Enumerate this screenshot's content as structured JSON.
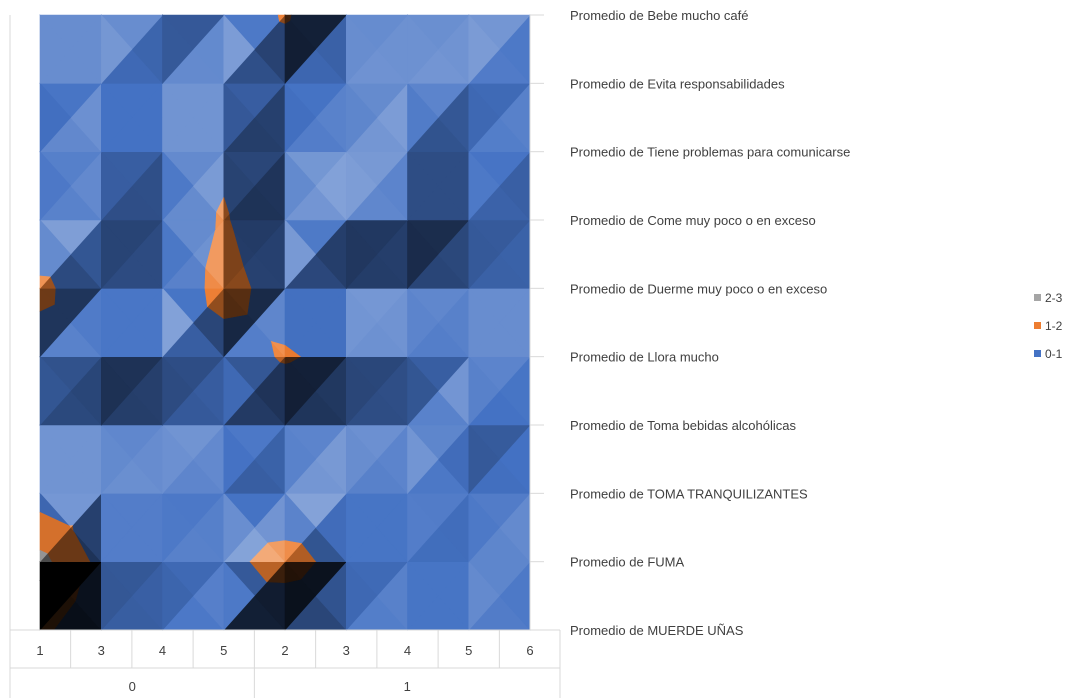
{
  "chart_data": {
    "type": "surface-contour",
    "title": "",
    "xlabel": "",
    "ylabel": "",
    "x_groups": [
      {
        "label": "0",
        "categories": [
          "1",
          "3",
          "4",
          "5"
        ]
      },
      {
        "label": "1",
        "categories": [
          "2",
          "3",
          "4",
          "5",
          "6"
        ]
      }
    ],
    "series": [
      "Promedio de MUERDE UÑAS",
      "Promedio de FUMA",
      "Promedio de TOMA TRANQUILIZANTES",
      "Promedio de Toma bebidas alcohólicas",
      "Promedio de Llora mucho",
      "Promedio de Duerme muy poco o en exceso",
      "Promedio de Come muy poco o en exceso",
      "Promedio de Tiene problemas para comunicarse",
      "Promedio de Evita responsabilidades",
      "Promedio de Bebe mucho café"
    ],
    "values": [
      [
        1.2,
        0.3,
        0.4,
        0.7,
        0.1,
        0.4,
        0.6,
        0.5,
        0.6
      ],
      [
        2.3,
        0.7,
        0.7,
        0.7,
        1.4,
        0.6,
        0.5,
        0.4,
        0.7
      ],
      [
        0.5,
        0.6,
        0.6,
        0.5,
        0.1,
        0.5,
        0.4,
        0.5,
        0.6
      ],
      [
        0.1,
        0.2,
        0.1,
        0.2,
        0.1,
        0.1,
        0.2,
        0.8,
        0.6
      ],
      [
        0.6,
        0.9,
        0.6,
        0.5,
        1.1,
        0.7,
        0.7,
        0.5,
        0.5
      ],
      [
        1.2,
        0.4,
        0.1,
        1.4,
        0.5,
        0.1,
        0.2,
        0.1,
        0.1
      ],
      [
        0.1,
        0.7,
        0.3,
        1.1,
        0.1,
        0.9,
        0.9,
        0.4,
        0.3
      ],
      [
        0.3,
        0.7,
        0.5,
        0.8,
        0.1,
        0.4,
        0.9,
        0.4,
        0.6
      ],
      [
        0.5,
        0.5,
        0.3,
        0.6,
        0.3,
        0.4,
        0.5,
        0.6,
        0.5
      ],
      [
        0.1,
        0.1,
        0.6,
        0.2,
        1.1,
        0.1,
        0.1,
        0.1,
        0.6
      ]
    ],
    "legend": [
      {
        "label": "2-3",
        "color": "#a5a5a5"
      },
      {
        "label": "1-2",
        "color": "#ed7d31"
      },
      {
        "label": "0-1",
        "color": "#4472c4"
      }
    ],
    "legend_position": "right",
    "grid": false
  }
}
